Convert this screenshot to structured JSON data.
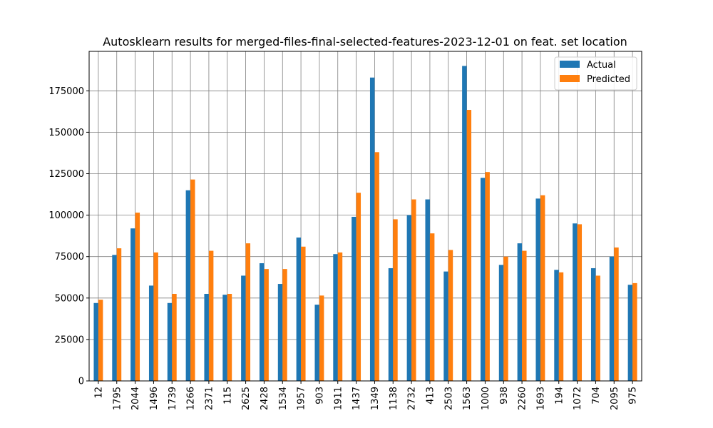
{
  "chart_data": {
    "type": "bar",
    "title": "Autosklearn results for merged-files-final-selected-features-2023-12-01 on feat. set location",
    "xlabel": "",
    "ylabel": "",
    "ylim": [
      0,
      200000
    ],
    "yticks": [
      0,
      25000,
      50000,
      75000,
      100000,
      125000,
      150000,
      175000
    ],
    "ytick_labels": [
      "0",
      "25000",
      "50000",
      "75000",
      "100000",
      "125000",
      "150000",
      "175000"
    ],
    "grid": true,
    "legend_position": "top-right",
    "categories": [
      "12",
      "1795",
      "2044",
      "1496",
      "1739",
      "1266",
      "2371",
      "115",
      "2625",
      "2428",
      "1534",
      "1957",
      "903",
      "1911",
      "1437",
      "1349",
      "1138",
      "2732",
      "413",
      "2503",
      "1563",
      "1000",
      "938",
      "2260",
      "1693",
      "194",
      "1072",
      "704",
      "2095",
      "975"
    ],
    "series": [
      {
        "name": "Actual",
        "color": "#1f77b4",
        "values": [
          47000,
          76000,
          92000,
          57500,
          47000,
          115000,
          52500,
          52000,
          63500,
          71000,
          58500,
          86500,
          46000,
          76500,
          99000,
          183000,
          68000,
          100000,
          109500,
          66000,
          190000,
          122500,
          70000,
          83000,
          110000,
          67000,
          95000,
          68000,
          75000,
          58000
        ]
      },
      {
        "name": "Predicted",
        "color": "#ff7f0e",
        "values": [
          49000,
          80000,
          101500,
          77500,
          52500,
          121500,
          78500,
          52500,
          83000,
          67500,
          67500,
          81000,
          51500,
          77500,
          113500,
          138000,
          97500,
          109500,
          89000,
          79000,
          163500,
          126000,
          75000,
          78500,
          112000,
          65500,
          94500,
          63500,
          80500,
          59000
        ]
      }
    ]
  }
}
